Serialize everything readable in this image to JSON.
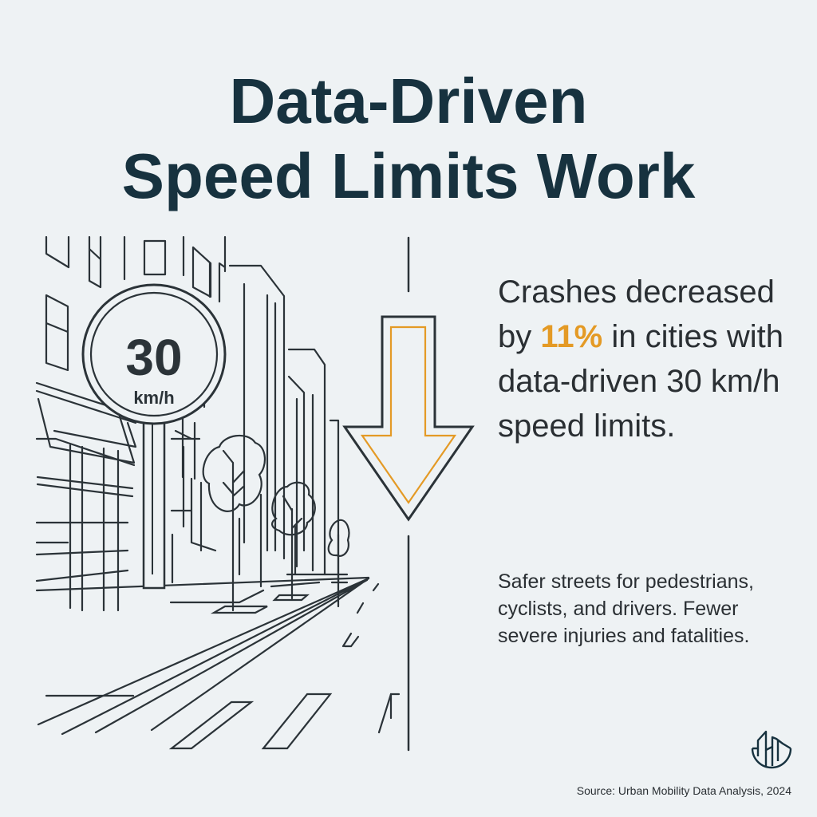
{
  "title": {
    "line1": "Data-Driven",
    "line2": "Speed Limits Work"
  },
  "sign": {
    "value": "30",
    "unit": "km/h"
  },
  "headline": {
    "before": "Crashes decreased by ",
    "highlight": "11%",
    "after": " in cities with data-driven 30 km/h speed limits."
  },
  "subtext": "Safer streets for pedestrians, cyclists, and drivers. Fewer severe injuries and fatalities.",
  "source": "Source: Urban Mobility Data Analysis, 2024",
  "colors": {
    "background": "#eef2f4",
    "title": "#17323f",
    "accent": "#e49a25",
    "line": "#2b3338"
  },
  "icons": {
    "arrow": "down-arrow-icon",
    "logo": "city-buildings-logo-icon"
  }
}
